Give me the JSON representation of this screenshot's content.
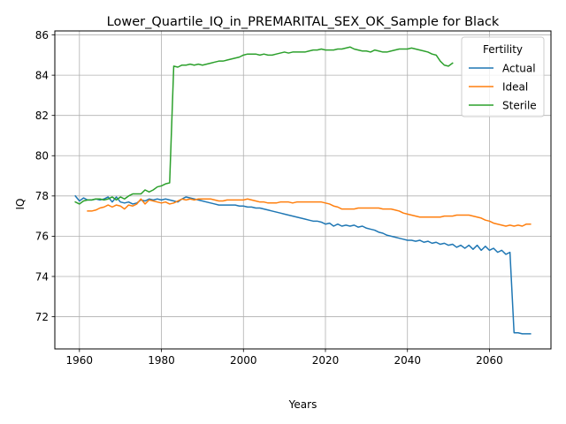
{
  "chart_data": {
    "type": "line",
    "title": "Lower_Quartile_IQ_in_PREMARITAL_SEX_OK_Sample for Black",
    "xlabel": "Years",
    "ylabel": "IQ",
    "xlim": [
      1954,
      2075
    ],
    "ylim": [
      70.4,
      86.2
    ],
    "xticks": [
      1960,
      1980,
      2000,
      2020,
      2040,
      2060
    ],
    "yticks": [
      72,
      74,
      76,
      78,
      80,
      82,
      84,
      86
    ],
    "grid": true,
    "legend": {
      "title": "Fertility",
      "placement": "top-right"
    },
    "series": [
      {
        "name": "Actual",
        "color": "#1f77b4",
        "points": [
          [
            1959,
            78.0
          ],
          [
            1960,
            77.75
          ],
          [
            1961,
            77.9
          ],
          [
            1962,
            77.8
          ],
          [
            1963,
            77.8
          ],
          [
            1964,
            77.85
          ],
          [
            1965,
            77.8
          ],
          [
            1966,
            77.85
          ],
          [
            1967,
            77.95
          ],
          [
            1968,
            77.7
          ],
          [
            1969,
            77.95
          ],
          [
            1970,
            77.7
          ],
          [
            1971,
            77.65
          ],
          [
            1972,
            77.7
          ],
          [
            1973,
            77.6
          ],
          [
            1974,
            77.65
          ],
          [
            1975,
            77.8
          ],
          [
            1976,
            77.75
          ],
          [
            1977,
            77.85
          ],
          [
            1978,
            77.8
          ],
          [
            1979,
            77.85
          ],
          [
            1980,
            77.8
          ],
          [
            1981,
            77.85
          ],
          [
            1982,
            77.8
          ],
          [
            1983,
            77.75
          ],
          [
            1984,
            77.7
          ],
          [
            1985,
            77.85
          ],
          [
            1986,
            77.95
          ],
          [
            1987,
            77.9
          ],
          [
            1988,
            77.85
          ],
          [
            1989,
            77.8
          ],
          [
            1990,
            77.75
          ],
          [
            1991,
            77.7
          ],
          [
            1992,
            77.65
          ],
          [
            1993,
            77.6
          ],
          [
            1994,
            77.55
          ],
          [
            1995,
            77.55
          ],
          [
            1996,
            77.55
          ],
          [
            1997,
            77.55
          ],
          [
            1998,
            77.55
          ],
          [
            1999,
            77.5
          ],
          [
            2000,
            77.5
          ],
          [
            2001,
            77.45
          ],
          [
            2002,
            77.45
          ],
          [
            2003,
            77.4
          ],
          [
            2004,
            77.4
          ],
          [
            2005,
            77.35
          ],
          [
            2006,
            77.3
          ],
          [
            2007,
            77.25
          ],
          [
            2008,
            77.2
          ],
          [
            2009,
            77.15
          ],
          [
            2010,
            77.1
          ],
          [
            2011,
            77.05
          ],
          [
            2012,
            77.0
          ],
          [
            2013,
            76.95
          ],
          [
            2014,
            76.9
          ],
          [
            2015,
            76.85
          ],
          [
            2016,
            76.8
          ],
          [
            2017,
            76.75
          ],
          [
            2018,
            76.75
          ],
          [
            2019,
            76.7
          ],
          [
            2020,
            76.6
          ],
          [
            2021,
            76.65
          ],
          [
            2022,
            76.5
          ],
          [
            2023,
            76.6
          ],
          [
            2024,
            76.5
          ],
          [
            2025,
            76.55
          ],
          [
            2026,
            76.5
          ],
          [
            2027,
            76.55
          ],
          [
            2028,
            76.45
          ],
          [
            2029,
            76.5
          ],
          [
            2030,
            76.4
          ],
          [
            2031,
            76.35
          ],
          [
            2032,
            76.3
          ],
          [
            2033,
            76.2
          ],
          [
            2034,
            76.15
          ],
          [
            2035,
            76.05
          ],
          [
            2036,
            76.0
          ],
          [
            2037,
            75.95
          ],
          [
            2038,
            75.9
          ],
          [
            2039,
            75.85
          ],
          [
            2040,
            75.8
          ],
          [
            2041,
            75.8
          ],
          [
            2042,
            75.75
          ],
          [
            2043,
            75.8
          ],
          [
            2044,
            75.7
          ],
          [
            2045,
            75.75
          ],
          [
            2046,
            75.65
          ],
          [
            2047,
            75.7
          ],
          [
            2048,
            75.6
          ],
          [
            2049,
            75.65
          ],
          [
            2050,
            75.55
          ],
          [
            2051,
            75.6
          ],
          [
            2052,
            75.45
          ],
          [
            2053,
            75.55
          ],
          [
            2054,
            75.4
          ],
          [
            2055,
            75.55
          ],
          [
            2056,
            75.35
          ],
          [
            2057,
            75.55
          ],
          [
            2058,
            75.3
          ],
          [
            2059,
            75.5
          ],
          [
            2060,
            75.3
          ],
          [
            2061,
            75.4
          ],
          [
            2062,
            75.2
          ],
          [
            2063,
            75.3
          ],
          [
            2064,
            75.1
          ],
          [
            2065,
            75.2
          ],
          [
            2066,
            71.2
          ],
          [
            2067,
            71.2
          ],
          [
            2068,
            71.15
          ],
          [
            2069,
            71.15
          ],
          [
            2070,
            71.15
          ]
        ]
      },
      {
        "name": "Ideal",
        "color": "#ff7f0e",
        "points": [
          [
            1962,
            77.25
          ],
          [
            1963,
            77.25
          ],
          [
            1964,
            77.3
          ],
          [
            1965,
            77.4
          ],
          [
            1966,
            77.45
          ],
          [
            1967,
            77.55
          ],
          [
            1968,
            77.45
          ],
          [
            1969,
            77.55
          ],
          [
            1970,
            77.5
          ],
          [
            1971,
            77.35
          ],
          [
            1972,
            77.55
          ],
          [
            1973,
            77.5
          ],
          [
            1974,
            77.6
          ],
          [
            1975,
            77.85
          ],
          [
            1976,
            77.6
          ],
          [
            1977,
            77.8
          ],
          [
            1978,
            77.75
          ],
          [
            1979,
            77.7
          ],
          [
            1980,
            77.65
          ],
          [
            1981,
            77.7
          ],
          [
            1982,
            77.6
          ],
          [
            1983,
            77.65
          ],
          [
            1984,
            77.75
          ],
          [
            1985,
            77.85
          ],
          [
            1986,
            77.8
          ],
          [
            1987,
            77.85
          ],
          [
            1988,
            77.8
          ],
          [
            1989,
            77.85
          ],
          [
            1990,
            77.85
          ],
          [
            1991,
            77.85
          ],
          [
            1992,
            77.85
          ],
          [
            1993,
            77.8
          ],
          [
            1994,
            77.75
          ],
          [
            1995,
            77.75
          ],
          [
            1996,
            77.8
          ],
          [
            1997,
            77.8
          ],
          [
            1998,
            77.8
          ],
          [
            1999,
            77.8
          ],
          [
            2000,
            77.8
          ],
          [
            2001,
            77.85
          ],
          [
            2002,
            77.8
          ],
          [
            2003,
            77.75
          ],
          [
            2004,
            77.7
          ],
          [
            2005,
            77.7
          ],
          [
            2006,
            77.65
          ],
          [
            2007,
            77.65
          ],
          [
            2008,
            77.65
          ],
          [
            2009,
            77.7
          ],
          [
            2010,
            77.7
          ],
          [
            2011,
            77.7
          ],
          [
            2012,
            77.65
          ],
          [
            2013,
            77.7
          ],
          [
            2014,
            77.7
          ],
          [
            2015,
            77.7
          ],
          [
            2016,
            77.7
          ],
          [
            2017,
            77.7
          ],
          [
            2018,
            77.7
          ],
          [
            2019,
            77.7
          ],
          [
            2020,
            77.65
          ],
          [
            2021,
            77.6
          ],
          [
            2022,
            77.5
          ],
          [
            2023,
            77.45
          ],
          [
            2024,
            77.35
          ],
          [
            2025,
            77.35
          ],
          [
            2026,
            77.35
          ],
          [
            2027,
            77.35
          ],
          [
            2028,
            77.4
          ],
          [
            2029,
            77.4
          ],
          [
            2030,
            77.4
          ],
          [
            2031,
            77.4
          ],
          [
            2032,
            77.4
          ],
          [
            2033,
            77.4
          ],
          [
            2034,
            77.35
          ],
          [
            2035,
            77.35
          ],
          [
            2036,
            77.35
          ],
          [
            2037,
            77.3
          ],
          [
            2038,
            77.25
          ],
          [
            2039,
            77.15
          ],
          [
            2040,
            77.1
          ],
          [
            2041,
            77.05
          ],
          [
            2042,
            77.0
          ],
          [
            2043,
            76.95
          ],
          [
            2044,
            76.95
          ],
          [
            2045,
            76.95
          ],
          [
            2046,
            76.95
          ],
          [
            2047,
            76.95
          ],
          [
            2048,
            76.95
          ],
          [
            2049,
            77.0
          ],
          [
            2050,
            77.0
          ],
          [
            2051,
            77.0
          ],
          [
            2052,
            77.05
          ],
          [
            2053,
            77.05
          ],
          [
            2054,
            77.05
          ],
          [
            2055,
            77.05
          ],
          [
            2056,
            77.0
          ],
          [
            2057,
            76.95
          ],
          [
            2058,
            76.9
          ],
          [
            2059,
            76.8
          ],
          [
            2060,
            76.75
          ],
          [
            2061,
            76.65
          ],
          [
            2062,
            76.6
          ],
          [
            2063,
            76.55
          ],
          [
            2064,
            76.5
          ],
          [
            2065,
            76.55
          ],
          [
            2066,
            76.5
          ],
          [
            2067,
            76.55
          ],
          [
            2068,
            76.5
          ],
          [
            2069,
            76.6
          ],
          [
            2070,
            76.6
          ]
        ]
      },
      {
        "name": "Sterile",
        "color": "#2ca02c",
        "points": [
          [
            1959,
            77.7
          ],
          [
            1960,
            77.6
          ],
          [
            1961,
            77.75
          ],
          [
            1962,
            77.8
          ],
          [
            1963,
            77.8
          ],
          [
            1964,
            77.85
          ],
          [
            1965,
            77.85
          ],
          [
            1966,
            77.8
          ],
          [
            1967,
            77.85
          ],
          [
            1968,
            77.95
          ],
          [
            1969,
            77.8
          ],
          [
            1970,
            77.95
          ],
          [
            1971,
            77.85
          ],
          [
            1972,
            78.0
          ],
          [
            1973,
            78.1
          ],
          [
            1974,
            78.1
          ],
          [
            1975,
            78.1
          ],
          [
            1976,
            78.3
          ],
          [
            1977,
            78.2
          ],
          [
            1978,
            78.3
          ],
          [
            1979,
            78.45
          ],
          [
            1980,
            78.5
          ],
          [
            1981,
            78.6
          ],
          [
            1982,
            78.65
          ],
          [
            1983,
            84.45
          ],
          [
            1984,
            84.4
          ],
          [
            1985,
            84.5
          ],
          [
            1986,
            84.5
          ],
          [
            1987,
            84.55
          ],
          [
            1988,
            84.5
          ],
          [
            1989,
            84.55
          ],
          [
            1990,
            84.5
          ],
          [
            1991,
            84.55
          ],
          [
            1992,
            84.6
          ],
          [
            1993,
            84.65
          ],
          [
            1994,
            84.7
          ],
          [
            1995,
            84.7
          ],
          [
            1996,
            84.75
          ],
          [
            1997,
            84.8
          ],
          [
            1998,
            84.85
          ],
          [
            1999,
            84.9
          ],
          [
            2000,
            85.0
          ],
          [
            2001,
            85.05
          ],
          [
            2002,
            85.05
          ],
          [
            2003,
            85.05
          ],
          [
            2004,
            85.0
          ],
          [
            2005,
            85.05
          ],
          [
            2006,
            85.0
          ],
          [
            2007,
            85.0
          ],
          [
            2008,
            85.05
          ],
          [
            2009,
            85.1
          ],
          [
            2010,
            85.15
          ],
          [
            2011,
            85.1
          ],
          [
            2012,
            85.15
          ],
          [
            2013,
            85.15
          ],
          [
            2014,
            85.15
          ],
          [
            2015,
            85.15
          ],
          [
            2016,
            85.2
          ],
          [
            2017,
            85.25
          ],
          [
            2018,
            85.25
          ],
          [
            2019,
            85.3
          ],
          [
            2020,
            85.25
          ],
          [
            2021,
            85.25
          ],
          [
            2022,
            85.25
          ],
          [
            2023,
            85.3
          ],
          [
            2024,
            85.3
          ],
          [
            2025,
            85.35
          ],
          [
            2026,
            85.4
          ],
          [
            2027,
            85.3
          ],
          [
            2028,
            85.25
          ],
          [
            2029,
            85.2
          ],
          [
            2030,
            85.2
          ],
          [
            2031,
            85.15
          ],
          [
            2032,
            85.25
          ],
          [
            2033,
            85.2
          ],
          [
            2034,
            85.15
          ],
          [
            2035,
            85.15
          ],
          [
            2036,
            85.2
          ],
          [
            2037,
            85.25
          ],
          [
            2038,
            85.3
          ],
          [
            2039,
            85.3
          ],
          [
            2040,
            85.3
          ],
          [
            2041,
            85.35
          ],
          [
            2042,
            85.3
          ],
          [
            2043,
            85.25
          ],
          [
            2044,
            85.2
          ],
          [
            2045,
            85.15
          ],
          [
            2046,
            85.05
          ],
          [
            2047,
            85.0
          ],
          [
            2048,
            84.7
          ],
          [
            2049,
            84.5
          ],
          [
            2050,
            84.45
          ],
          [
            2051,
            84.6
          ]
        ]
      }
    ]
  }
}
